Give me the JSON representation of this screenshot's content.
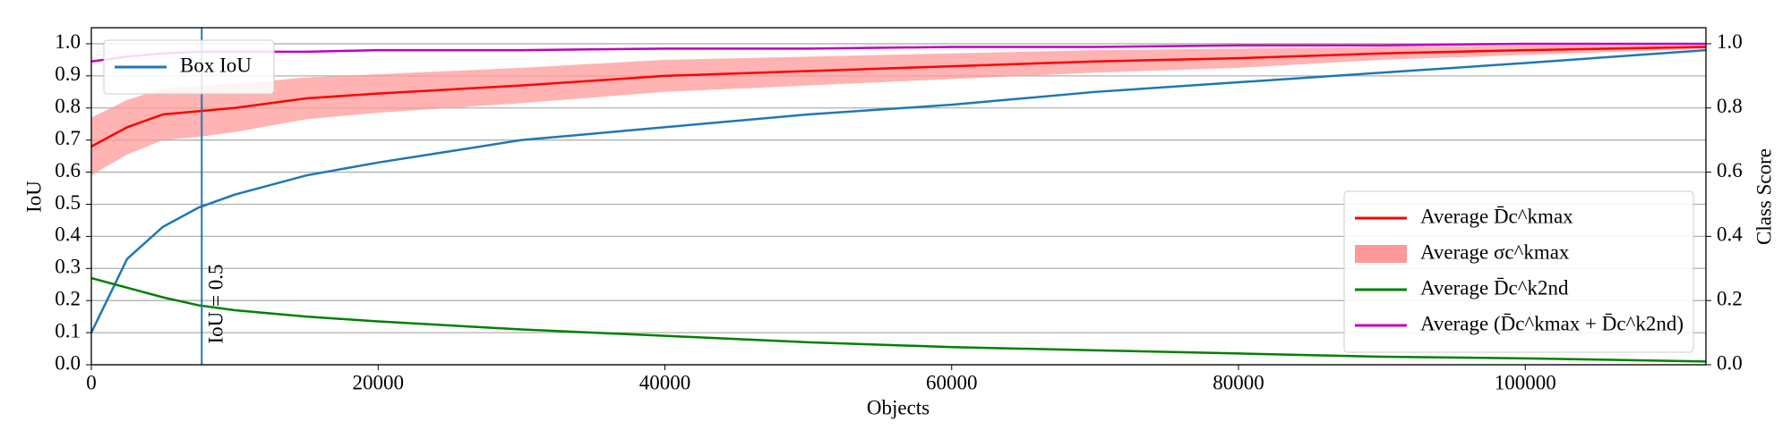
{
  "chart_data": {
    "type": "line",
    "xlabel": "Objects",
    "ylabel": "IoU",
    "y2label": "Class Score",
    "x": [
      0,
      2500,
      5000,
      7500,
      10000,
      15000,
      20000,
      30000,
      40000,
      50000,
      60000,
      70000,
      80000,
      90000,
      100000,
      112600
    ],
    "series": [
      {
        "name": "Box IoU",
        "color": "#1f77b4",
        "axis": "y",
        "values": [
          0.1,
          0.33,
          0.43,
          0.49,
          0.53,
          0.59,
          0.63,
          0.7,
          0.74,
          0.78,
          0.81,
          0.85,
          0.88,
          0.91,
          0.94,
          0.98
        ]
      },
      {
        "name": "Average D̄c^kmax",
        "color": "#ff0000",
        "axis": "y2",
        "values": [
          0.68,
          0.74,
          0.78,
          0.79,
          0.8,
          0.83,
          0.845,
          0.87,
          0.9,
          0.915,
          0.93,
          0.945,
          0.955,
          0.97,
          0.98,
          0.99
        ],
        "band": {
          "name": "Average σc^kmax",
          "color": "#ff9999",
          "values": [
            0.09,
            0.085,
            0.08,
            0.08,
            0.075,
            0.065,
            0.06,
            0.055,
            0.05,
            0.045,
            0.04,
            0.035,
            0.03,
            0.02,
            0.015,
            0.005
          ]
        }
      },
      {
        "name": "Average D̄c^k2nd",
        "color": "#008000",
        "axis": "y2",
        "values": [
          0.27,
          0.24,
          0.21,
          0.185,
          0.17,
          0.15,
          0.135,
          0.11,
          0.09,
          0.07,
          0.055,
          0.045,
          0.035,
          0.025,
          0.02,
          0.01
        ]
      },
      {
        "name": "Average (D̄c^kmax + D̄c^k2nd)",
        "color": "#bf00bf",
        "axis": "y2",
        "values": [
          0.945,
          0.96,
          0.97,
          0.975,
          0.975,
          0.975,
          0.98,
          0.98,
          0.985,
          0.985,
          0.99,
          0.99,
          0.995,
          0.995,
          1.0,
          1.0
        ]
      }
    ],
    "vline": {
      "x": 7700,
      "label": "IoU = 0.5",
      "color": "#1f77b4"
    },
    "xlim": [
      0,
      112600
    ],
    "xticks": [
      0,
      20000,
      40000,
      60000,
      80000,
      100000
    ],
    "ylim": [
      0,
      1.05
    ],
    "yticks": [
      {
        "value": 0,
        "label": "0.0"
      },
      0.1,
      0.2,
      0.3,
      0.4,
      0.5,
      0.6,
      0.7,
      0.8,
      0.9,
      {
        "value": 1,
        "label": "1.0"
      }
    ],
    "y2lim": [
      0,
      1.05
    ],
    "y2ticks": [
      {
        "value": 0,
        "label": "0.0"
      },
      0.2,
      0.4,
      0.6,
      0.8,
      {
        "value": 1,
        "label": "1.0"
      }
    ],
    "grid": true,
    "legend": {
      "y": "upper left",
      "y2": "lower right"
    }
  }
}
